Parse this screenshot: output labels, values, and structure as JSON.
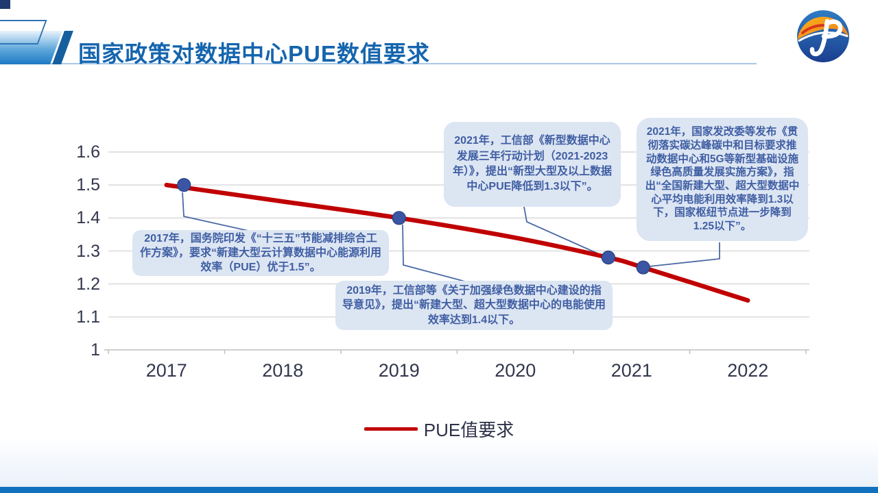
{
  "slide": {
    "title": "国家政策对数据中心PUE数值要求"
  },
  "legend": {
    "label": "PUE值要求"
  },
  "colors": {
    "title_blue": "#1565AE",
    "header_rule": "#A9C8E8",
    "grid": "#D9D9D9",
    "axis": "#BFBFBF",
    "tick_label": "#33374D",
    "line_red": "#C00000",
    "marker_blue": "#3A55A4",
    "marker_edge": "#243E7E",
    "leader": "#4A69A5",
    "callout_bg": "#DCE5F2",
    "callout_text": "#3F5EA3",
    "footer_bar": "#1271BC"
  },
  "chart_data": {
    "type": "line",
    "title": "国家政策对数据中心PUE数值要求",
    "xlabel": "",
    "ylabel": "",
    "x_ticks": [
      "2017",
      "2018",
      "2019",
      "2020",
      "2021",
      "2022"
    ],
    "y_ticks": [
      1.6,
      1.5,
      1.4,
      1.3,
      1.2,
      1.1,
      1
    ],
    "ylim": [
      1,
      1.6
    ],
    "xlim": [
      2016.5,
      2022.5
    ],
    "grid": true,
    "legend_position": "bottom",
    "series": [
      {
        "name": "PUE值要求",
        "color": "#C00000",
        "points": [
          {
            "x": 2017,
            "y": 1.5
          },
          {
            "x": 2018,
            "y": 1.45
          },
          {
            "x": 2019,
            "y": 1.4
          },
          {
            "x": 2020,
            "y": 1.34
          },
          {
            "x": 2020.8,
            "y": 1.28
          },
          {
            "x": 2021.1,
            "y": 1.25
          },
          {
            "x": 2022,
            "y": 1.15
          }
        ]
      }
    ],
    "markers": {
      "color": "#3A55A4",
      "points": [
        {
          "x": 2017.15,
          "y": 1.5
        },
        {
          "x": 2019,
          "y": 1.4
        },
        {
          "x": 2020.8,
          "y": 1.28
        },
        {
          "x": 2021.1,
          "y": 1.25
        }
      ]
    },
    "annotations": [
      {
        "text": "2017年，国务院印发《“十三五”节能减排综合工作方案》，要求“新建大型云计算数据中心能源利用效率（PUE）优于1.5”。"
      },
      {
        "text": "2019年，工信部等《关于加强绿色数据中心建设的指导意见》，提出“新建大型、超大型数据中心的电能使用效率达到1.4以下。"
      },
      {
        "text": "2021年，工信部《新型数据中心发展三年行动计划（2021-2023年）》，提出“新型大型及以上数据中心PUE降低到1.3以下”。"
      },
      {
        "text": "2021年，国家发改委等发布《贯彻落实碳达峰碳中和目标要求推动数据中心和5G等新型基础设施绿色高质量发展实施方案》，指出“全国新建大型、超大型数据中心平均电能利用效率降到1.3以下，国家枢纽节点进一步降到1.25以下”。"
      }
    ]
  }
}
